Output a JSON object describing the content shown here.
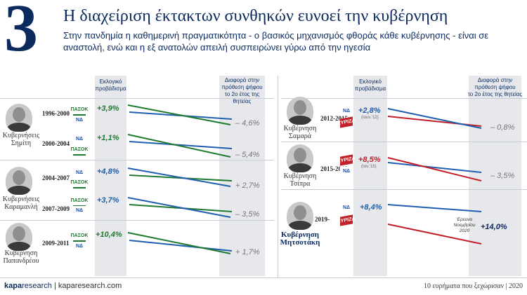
{
  "header": {
    "big_number": "3",
    "title": "Η διαχείριση έκτακτων συνθηκών ευνοεί την κυβέρνηση",
    "subtitle": "Στην πανδημία η καθημερινή πραγματικότητα - ο βασικός μηχανισμός φθοράς κάθε κυβέρνησης - είναι σε αναστολή, ενώ και η εξ ανατολών απειλή συσπειρώνει γύρω από την ηγεσία"
  },
  "columns": {
    "vote_label": "Εκλογικό\nπροβάδισμα",
    "diff_label": "Διαφορά στην\nπρόθεση ψήφου\nτο 2ο έτος της θητείας"
  },
  "colors": {
    "green": "#1f7a2e",
    "blue": "#1f5fae",
    "red": "#c0202a",
    "navy": "#0b2a5e"
  },
  "people": [
    {
      "name": "Κυβερνήσεις\nΣημίτη",
      "bold": false,
      "avatar_icon": "person-photo-icon"
    },
    {
      "name": "Κυβερνήσεις\nΚαραμανλή",
      "bold": false,
      "avatar_icon": "person-photo-icon"
    },
    {
      "name": "Κυβέρνηση\nΠαπανδρέου",
      "bold": false,
      "avatar_icon": "person-photo-icon"
    },
    {
      "name": "Κυβέρνηση\nΣαμαρά",
      "bold": false,
      "avatar_icon": "person-photo-icon"
    },
    {
      "name": "Κυβέρνηση\nΤσίπρα",
      "bold": false,
      "avatar_icon": "person-photo-icon"
    },
    {
      "name": "Κυβέρνηση\nΜητσοτάκη",
      "bold": true,
      "avatar_icon": "person-photo-icon"
    }
  ],
  "chart_data": [
    {
      "type": "line",
      "title": "",
      "x": [
        "Εκλογικό προβάδισμα",
        "Διαφορά στην πρόθεση ψήφου το 2ο έτος της θητείας"
      ],
      "series": [
        {
          "period": "1996-2000",
          "lead": "+3,9%",
          "lead_value": 3.9,
          "change": "– 4,6%",
          "change_value": -4.6,
          "color": "green",
          "parties": [
            "ΠΑΣΟΚ",
            "ΝΔ"
          ]
        },
        {
          "period": "2000-2004",
          "lead": "+1,1%",
          "lead_value": 1.1,
          "change": "– 5,4%",
          "change_value": -5.4,
          "color": "green",
          "parties": [
            "ΝΔ",
            "ΠΑΣΟΚ"
          ]
        },
        {
          "period": "2004-2007",
          "lead": "+4,8%",
          "lead_value": 4.8,
          "change": "+ 2,7%",
          "change_value": 2.7,
          "color": "blue",
          "parties": [
            "ΝΔ",
            "ΠΑΣΟΚ"
          ]
        },
        {
          "period": "2007-2009",
          "lead": "+3,7%",
          "lead_value": 3.7,
          "change": "– 3,5%",
          "change_value": -3.5,
          "color": "blue",
          "parties": [
            "ΠΑΣΟΚ",
            "ΝΔ"
          ]
        },
        {
          "period": "2009-2011",
          "lead": "+10,4%",
          "lead_value": 10.4,
          "change": "+ 1,7%",
          "change_value": 1.7,
          "color": "green",
          "parties": [
            "ΠΑΣΟΚ",
            "ΝΔ"
          ]
        },
        {
          "period": "2012-2015",
          "lead": "+2,8%",
          "lead_value": 2.8,
          "lead_note": "(Ιουν.'12)",
          "change": "– 0,8%",
          "change_value": -0.8,
          "color": "blue",
          "parties": [
            "ΝΔ",
            "ΣΥΡΙΖΑ"
          ]
        },
        {
          "period": "2015-2019",
          "lead": "+8,5%",
          "lead_value": 8.5,
          "lead_note": "(Ιαν.'15)",
          "change": "– 3,5%",
          "change_value": -3.5,
          "color": "red",
          "parties": [
            "ΣΥΡΙΖΑ",
            "ΝΔ"
          ]
        },
        {
          "period": "2019-",
          "lead": "+8,4%",
          "lead_value": 8.4,
          "change": "+14,0%",
          "change_value": 14.0,
          "color": "blue",
          "parties": [
            "ΝΔ",
            "ΣΥΡΙΖΑ"
          ],
          "change_note": "Έρευνα\nΝοεμβρίου\n2020"
        }
      ]
    }
  ],
  "footer": {
    "brand_k": "kapa",
    "brand_rest": "research",
    "site": "| kaparesearch.com",
    "note": "10 ευρήματα που ξεχώρισαν | 2020"
  }
}
